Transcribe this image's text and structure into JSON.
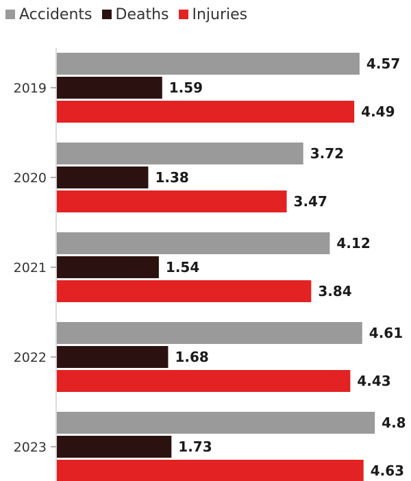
{
  "legend": {
    "items": [
      {
        "label": "Accidents",
        "color": "#9a9a9a"
      },
      {
        "label": "Deaths",
        "color": "#2b1210"
      },
      {
        "label": "Injuries",
        "color": "#e32224"
      }
    ]
  },
  "chart_data": {
    "type": "bar",
    "orientation": "horizontal",
    "categories": [
      "2019",
      "2020",
      "2021",
      "2022",
      "2023"
    ],
    "series": [
      {
        "name": "Accidents",
        "color": "#9a9a9a",
        "values": [
          4.57,
          3.72,
          4.12,
          4.61,
          4.8
        ],
        "labels": [
          "4.57",
          "3.72",
          "4.12",
          "4.61",
          "4.8"
        ]
      },
      {
        "name": "Deaths",
        "color": "#2b1210",
        "values": [
          1.59,
          1.38,
          1.54,
          1.68,
          1.73
        ],
        "labels": [
          "1.59",
          "1.38",
          "1.54",
          "1.68",
          "1.73"
        ]
      },
      {
        "name": "Injuries",
        "color": "#e32224",
        "values": [
          4.49,
          3.47,
          3.84,
          4.43,
          4.63
        ],
        "labels": [
          "4.49",
          "3.47",
          "3.84",
          "4.43",
          "4.63"
        ]
      }
    ],
    "title": "",
    "xlabel": "",
    "ylabel": "",
    "xlim": [
      0,
      4.8
    ],
    "grid": false,
    "legend_position": "top-left"
  }
}
